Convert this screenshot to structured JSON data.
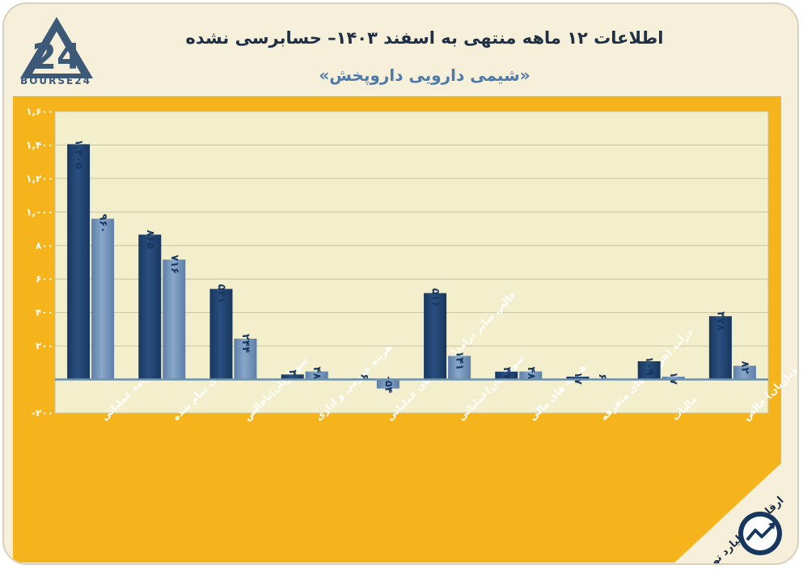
{
  "header": {
    "title": "اطلاعات ۱۲ ماهه منتهی به اسفند ۱۴۰۳– حسابرسی نشده",
    "subtitle": "«شیمی دارویی داروپخش»",
    "logo_text": "BOURSE24",
    "logo_mark": "24"
  },
  "footnote": "ارقام به میلیارد تومان",
  "colors": {
    "background": "#f6efd9",
    "panel": "#f5b31c",
    "plot": "#f3eecb",
    "series_dark": "#17375e",
    "series_light": "#5b7fa8",
    "axis": "#6d8fae"
  },
  "chart_data": {
    "type": "bar",
    "categories": [
      "درآمد عملیاتی",
      "بهای تمام شده",
      "سود(زیان)ناخالص",
      "هزینه عمومی و اداری",
      "خالص سایر درامد(هزینه)های عملیاتی",
      "سود(زیان)عملیاتی",
      "هزینه های مالی",
      "درآمد (هزینه) های متفرقه",
      "مالیات",
      "سود(زیان) خالص"
    ],
    "series": [
      {
        "values": [
          1405,
          865,
          541,
          30,
          6,
          516,
          47,
          17,
          109,
          378
        ],
        "labels": [
          "۱,۴۰۵",
          "۸۶۵",
          "۵۴۱",
          "۳۰",
          "۶",
          "۵۱۶",
          "۴۷",
          "۱۷",
          "۱۰۹",
          "۳۷۸"
        ]
      },
      {
        "values": [
          960,
          716,
          244,
          48,
          -54,
          141,
          48,
          6,
          17,
          82
        ],
        "labels": [
          "۹۶۰",
          "۷۱۶",
          "۲۴۴",
          "۴۸",
          "-۵۴",
          "۱۴۱",
          "۴۸",
          "۶",
          "۱۷",
          "۸۲"
        ]
      }
    ],
    "yticks": [
      1600,
      1400,
      1200,
      1000,
      800,
      600,
      400,
      200,
      -200
    ],
    "ytick_labels": [
      "۱,۶۰۰",
      "۱,۴۰۰",
      "۱,۲۰۰",
      "۱,۰۰۰",
      "۸۰۰",
      "۶۰۰",
      "۴۰۰",
      "۲۰۰",
      "-۲۰۰"
    ],
    "ylim": [
      -200,
      1600
    ],
    "grid": true,
    "legend": "none"
  }
}
